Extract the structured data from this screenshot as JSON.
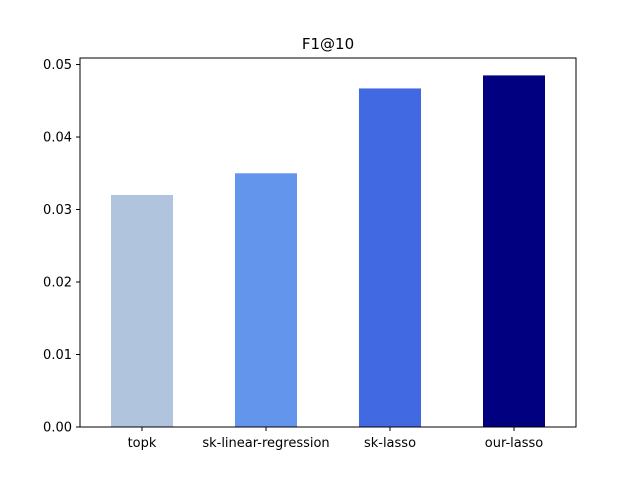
{
  "chart_data": {
    "type": "bar",
    "title": "F1@10",
    "xlabel": "",
    "ylabel": "",
    "categories": [
      "topk",
      "sk-linear-regression",
      "sk-lasso",
      "our-lasso"
    ],
    "values": [
      0.032,
      0.035,
      0.0467,
      0.0485
    ],
    "colors": [
      "#b0c4de",
      "#6495ed",
      "#4169e1",
      "#000080"
    ],
    "ylim": [
      0,
      0.0509
    ],
    "yticks": [
      0.0,
      0.01,
      0.02,
      0.03,
      0.04,
      0.05
    ],
    "ytick_labels": [
      "0.00",
      "0.01",
      "0.02",
      "0.03",
      "0.04",
      "0.05"
    ],
    "grid": false,
    "legend": "none"
  }
}
